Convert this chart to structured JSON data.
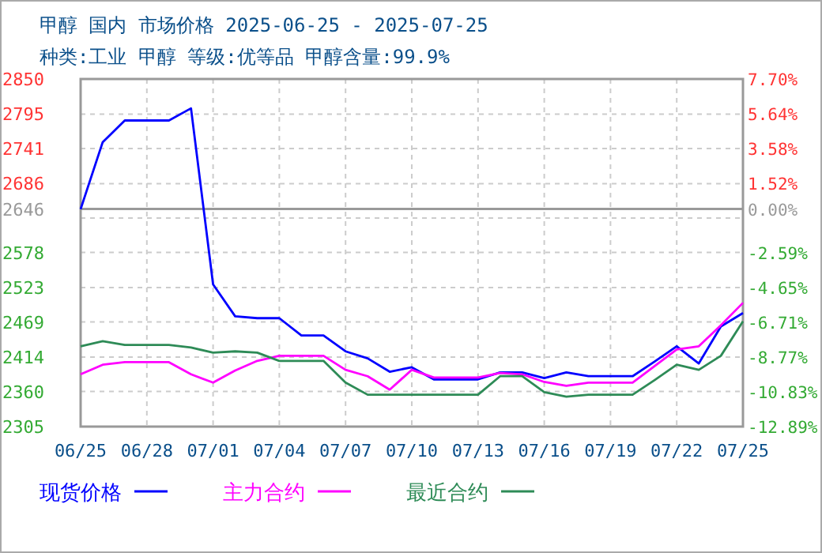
{
  "chart_data": {
    "type": "line",
    "title": "甲醇 国内 市场价格 2025-06-25 - 2025-07-25",
    "subtitle": "种类:工业 甲醇 等级:优等品 甲醇含量:99.9%",
    "x": [
      "2025-06-25",
      "2025-06-26",
      "2025-06-27",
      "2025-06-28",
      "2025-06-29",
      "2025-06-30",
      "2025-07-01",
      "2025-07-02",
      "2025-07-03",
      "2025-07-04",
      "2025-07-05",
      "2025-07-06",
      "2025-07-07",
      "2025-07-08",
      "2025-07-09",
      "2025-07-10",
      "2025-07-11",
      "2025-07-12",
      "2025-07-13",
      "2025-07-14",
      "2025-07-15",
      "2025-07-16",
      "2025-07-17",
      "2025-07-18",
      "2025-07-19",
      "2025-07-20",
      "2025-07-21",
      "2025-07-22",
      "2025-07-23",
      "2025-07-24",
      "2025-07-25"
    ],
    "series": [
      {
        "name": "现货价格",
        "color": "#0000ff",
        "values": [
          2646,
          2751,
          2785,
          2785,
          2785,
          2804,
          2528,
          2478,
          2475,
          2475,
          2448,
          2448,
          2423,
          2412,
          2391,
          2398,
          2379,
          2379,
          2379,
          2390,
          2390,
          2381,
          2390,
          2384,
          2384,
          2384,
          2407,
          2431,
          2404,
          2462,
          2483
        ]
      },
      {
        "name": "主力合约",
        "color": "#ff00ff",
        "values": [
          2387,
          2402,
          2406,
          2406,
          2406,
          2387,
          2374,
          2393,
          2408,
          2416,
          2416,
          2416,
          2394,
          2384,
          2363,
          2394,
          2382,
          2382,
          2382,
          2389,
          2387,
          2375,
          2369,
          2374,
          2374,
          2374,
          2400,
          2426,
          2431,
          2464,
          2499
        ]
      },
      {
        "name": "最近合约",
        "color": "#2e8b57",
        "values": [
          2431,
          2439,
          2433,
          2433,
          2433,
          2429,
          2421,
          2423,
          2421,
          2408,
          2408,
          2408,
          2374,
          2355,
          2355,
          2355,
          2355,
          2355,
          2355,
          2384,
          2384,
          2359,
          2352,
          2355,
          2355,
          2355,
          2378,
          2402,
          2394,
          2416,
          2470
        ]
      }
    ],
    "xlim": [
      "2025-06-25",
      "2025-07-25"
    ],
    "xticks": [
      {
        "value": "2025-06-25",
        "label": "06/25"
      },
      {
        "value": "2025-06-28",
        "label": "06/28"
      },
      {
        "value": "2025-07-01",
        "label": "07/01"
      },
      {
        "value": "2025-07-04",
        "label": "07/04"
      },
      {
        "value": "2025-07-07",
        "label": "07/07"
      },
      {
        "value": "2025-07-10",
        "label": "07/10"
      },
      {
        "value": "2025-07-13",
        "label": "07/13"
      },
      {
        "value": "2025-07-16",
        "label": "07/16"
      },
      {
        "value": "2025-07-19",
        "label": "07/19"
      },
      {
        "value": "2025-07-22",
        "label": "07/22"
      },
      {
        "value": "2025-07-25",
        "label": "07/25"
      }
    ],
    "ylim": [
      2305,
      2850
    ],
    "yticks": [
      2305,
      2360,
      2414,
      2469,
      2523,
      2578,
      {
        "value": 2632,
        "label": null
      },
      2646,
      2686,
      2741,
      2795,
      2850
    ],
    "y2lim": [
      -12.89,
      7.7
    ],
    "y2ticks": [
      {
        "value": -12.89,
        "label": "-12.89%"
      },
      {
        "value": -10.83,
        "label": "-10.83%"
      },
      {
        "value": -8.77,
        "label": "-8.77%"
      },
      {
        "value": -6.71,
        "label": "-6.71%"
      },
      {
        "value": -4.65,
        "label": "-4.65%"
      },
      {
        "value": -2.59,
        "label": "-2.59%"
      },
      {
        "value": 0,
        "label": "0.00%"
      },
      {
        "value": 1.52,
        "label": "1.52%"
      },
      {
        "value": 3.58,
        "label": "3.58%"
      },
      {
        "value": 5.64,
        "label": "5.64%"
      },
      {
        "value": 7.7,
        "label": "7.70%"
      }
    ],
    "ref_lines": [
      {
        "axis": "y2",
        "value": 0,
        "color": "#999999",
        "line_style": "solid"
      }
    ],
    "grid": true,
    "legend": "bottom",
    "marker": "none",
    "line_style": "solid"
  }
}
